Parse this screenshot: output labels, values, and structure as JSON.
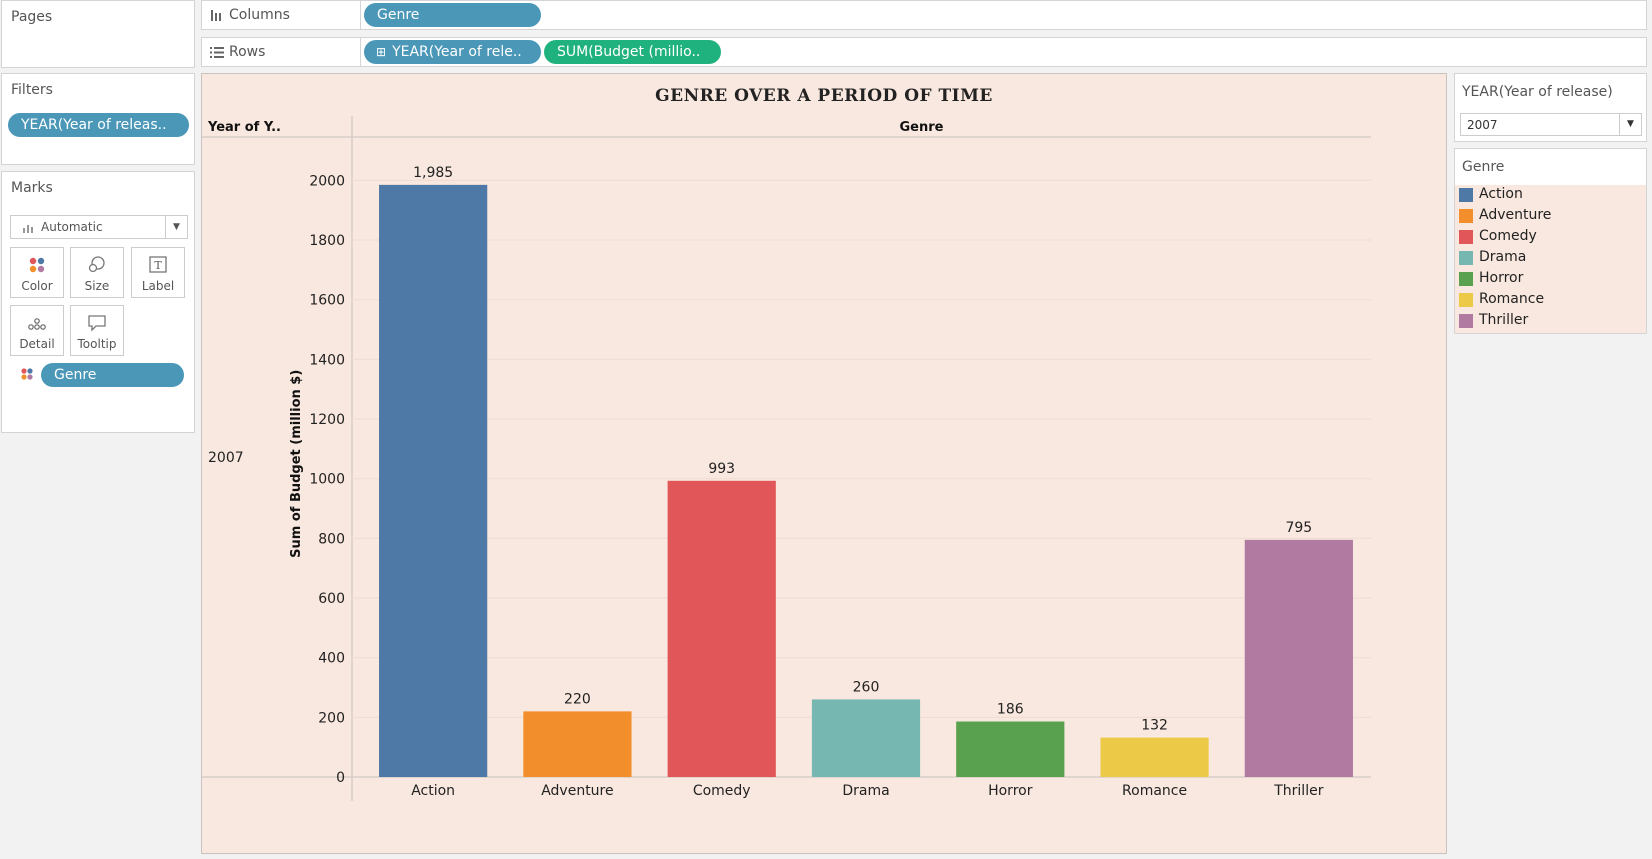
{
  "pages": {
    "title": "Pages"
  },
  "filters": {
    "title": "Filters",
    "pill": "YEAR(Year of releas.."
  },
  "marks": {
    "title": "Marks",
    "type": "Automatic",
    "buttons": [
      "Color",
      "Size",
      "Label",
      "Detail",
      "Tooltip"
    ],
    "color_pill": "Genre"
  },
  "shelves": {
    "columns_label": "Columns",
    "columns_pill": "Genre",
    "rows_label": "Rows",
    "rows_pills": [
      "YEAR(Year of rele..",
      "SUM(Budget (millio.."
    ]
  },
  "year_filter": {
    "title": "YEAR(Year of release)",
    "value": "2007"
  },
  "legend": {
    "title": "Genre",
    "items": [
      {
        "label": "Action",
        "color": "#4e79a7"
      },
      {
        "label": "Adventure",
        "color": "#f28e2b"
      },
      {
        "label": "Comedy",
        "color": "#e15759"
      },
      {
        "label": "Drama",
        "color": "#76b7b2"
      },
      {
        "label": "Horror",
        "color": "#59a14f"
      },
      {
        "label": "Romance",
        "color": "#edc948"
      },
      {
        "label": "Thriller",
        "color": "#b07aa1"
      }
    ]
  },
  "viz": {
    "title": "GENRE OVER A PERIOD OF TIME",
    "row_header": "Year of Y..",
    "column_header": "Genre",
    "row_value": "2007"
  },
  "chart_data": {
    "type": "bar",
    "title": "GENRE OVER A PERIOD OF TIME",
    "xlabel": "Genre",
    "ylabel": "Sum of Budget (million $)",
    "categories": [
      "Action",
      "Adventure",
      "Comedy",
      "Drama",
      "Horror",
      "Romance",
      "Thriller"
    ],
    "values": [
      1985,
      220,
      993,
      260,
      186,
      132,
      795
    ],
    "data_labels": [
      "1,985",
      "220",
      "993",
      "260",
      "186",
      "132",
      "795"
    ],
    "colors": [
      "#4e79a7",
      "#f28e2b",
      "#e15759",
      "#76b7b2",
      "#59a14f",
      "#edc948",
      "#b07aa1"
    ],
    "ylim": [
      0,
      2100
    ],
    "yticks": [
      0,
      200,
      400,
      600,
      800,
      1000,
      1200,
      1400,
      1600,
      1800,
      2000
    ],
    "grid": true,
    "legend": "right"
  }
}
